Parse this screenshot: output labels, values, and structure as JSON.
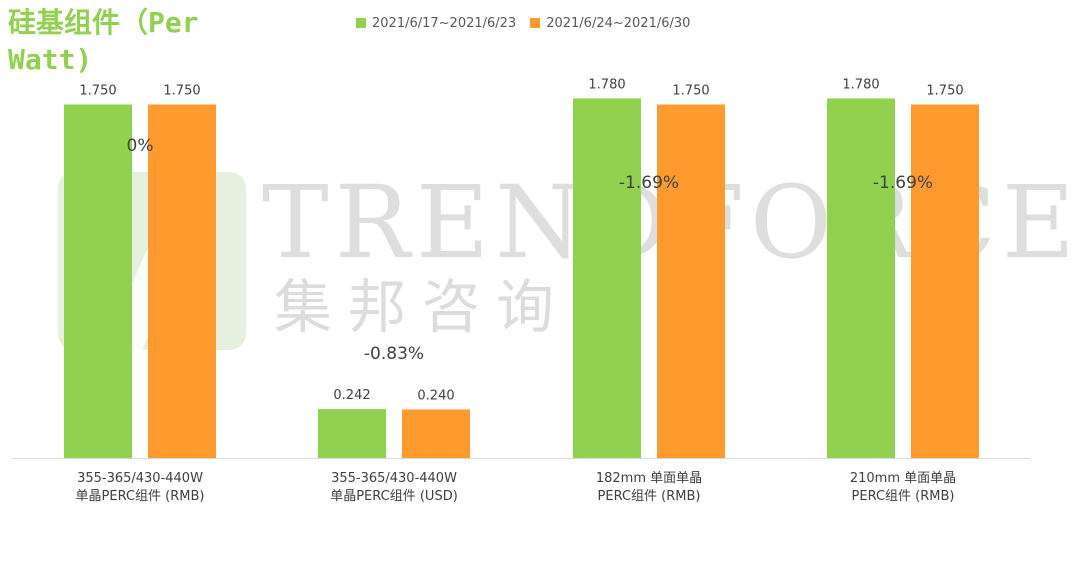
{
  "chart_data": {
    "type": "bar",
    "title": "硅基组件（Per Watt)",
    "categories": [
      [
        "355-365/430-440W",
        "单晶PERC组件 (RMB)"
      ],
      [
        "355-365/430-440W",
        "单晶PERC组件 (USD)"
      ],
      [
        "182mm 单面单晶",
        "PERC组件 (RMB)"
      ],
      [
        "210mm 单面单晶",
        "PERC组件 (RMB)"
      ]
    ],
    "series": [
      {
        "name": "2021/6/17~2021/6/23",
        "values": [
          1.75,
          0.242,
          1.78,
          1.78
        ],
        "labels": [
          "1.750",
          "0.242",
          "1.780",
          "1.780"
        ],
        "color": "#92d050"
      },
      {
        "name": "2021/6/24~2021/6/30",
        "values": [
          1.75,
          0.24,
          1.75,
          1.75
        ],
        "labels": [
          "1.750",
          "0.240",
          "1.750",
          "1.750"
        ],
        "color": "#ff9a2e"
      }
    ],
    "changes": [
      "0%",
      "-0.83%",
      "-1.69%",
      "-1.69%"
    ],
    "legend_position": "top",
    "gridlines": false
  },
  "watermark": {
    "text": "TRENDFORCE",
    "subtext": "集邦咨询"
  }
}
